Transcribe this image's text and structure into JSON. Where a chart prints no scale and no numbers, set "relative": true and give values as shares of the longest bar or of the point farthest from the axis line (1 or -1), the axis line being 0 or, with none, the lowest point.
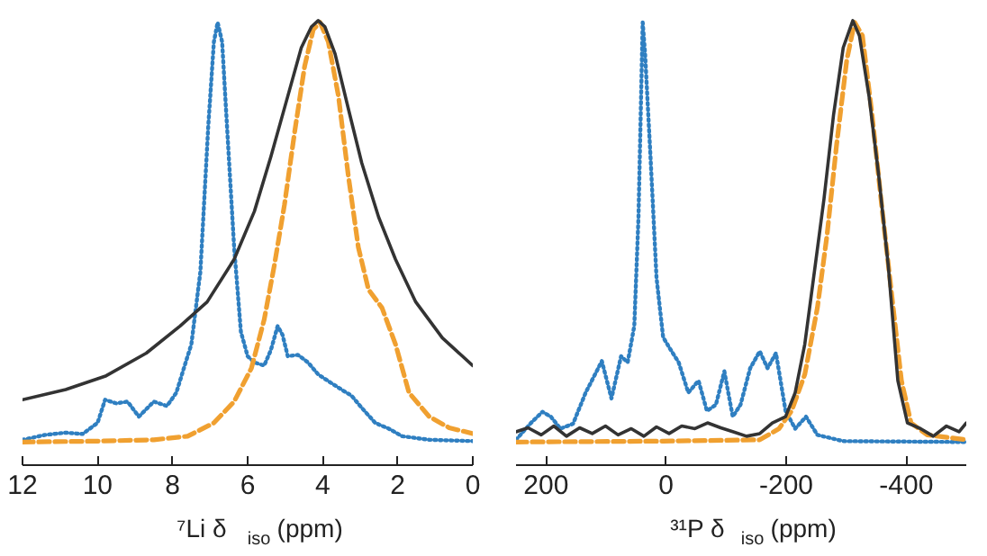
{
  "chart_data": [
    {
      "type": "line",
      "relative": true,
      "xlabel": "⁷Li δ$_{iso}$ (ppm)",
      "xlim": [
        12,
        0
      ],
      "xticks": [
        12,
        10,
        8,
        6,
        4,
        2,
        0
      ],
      "grid": false,
      "series": [
        {
          "color": "#2f7fc1",
          "line_style": "dotted",
          "x": [
            12,
            11.4,
            10.85,
            10.4,
            10.0,
            9.8,
            9.5,
            9.2,
            8.9,
            8.5,
            8.15,
            7.9,
            7.7,
            7.5,
            7.26,
            7.05,
            6.9,
            6.8,
            6.68,
            6.55,
            6.36,
            6.18,
            6.0,
            5.82,
            5.56,
            5.38,
            5.2,
            5.07,
            4.93,
            4.66,
            4.39,
            4.12,
            3.76,
            3.5,
            3.23,
            2.96,
            2.6,
            2.24,
            1.88,
            1.16,
            0
          ],
          "values": [
            0.057,
            0.068,
            0.073,
            0.07,
            0.095,
            0.147,
            0.139,
            0.143,
            0.109,
            0.143,
            0.133,
            0.163,
            0.218,
            0.272,
            0.435,
            0.762,
            0.952,
            0.996,
            0.952,
            0.762,
            0.49,
            0.3,
            0.245,
            0.231,
            0.224,
            0.259,
            0.313,
            0.293,
            0.245,
            0.248,
            0.231,
            0.204,
            0.184,
            0.17,
            0.156,
            0.129,
            0.095,
            0.082,
            0.065,
            0.057,
            0.054
          ]
        },
        {
          "color": "#f0a030",
          "line_style": "dashed",
          "x": [
            12,
            9.95,
            8.5,
            7.6,
            6.9,
            6.36,
            5.9,
            5.56,
            5.29,
            5.02,
            4.75,
            4.48,
            4.25,
            4.07,
            3.85,
            3.58,
            3.32,
            3.05,
            2.78,
            2.42,
            2.06,
            1.7,
            1.16,
            0.63,
            0
          ],
          "values": [
            0.052,
            0.054,
            0.057,
            0.065,
            0.095,
            0.143,
            0.218,
            0.327,
            0.449,
            0.585,
            0.748,
            0.898,
            0.98,
            0.996,
            0.952,
            0.83,
            0.653,
            0.49,
            0.395,
            0.354,
            0.272,
            0.163,
            0.109,
            0.084,
            0.071
          ]
        },
        {
          "color": "#333333",
          "line_style": "solid",
          "x": [
            12,
            10.85,
            9.77,
            8.7,
            7.8,
            7.08,
            6.36,
            5.82,
            5.38,
            4.93,
            4.57,
            4.3,
            4.12,
            3.94,
            3.67,
            3.32,
            2.96,
            2.51,
            2.06,
            1.52,
            0.81,
            0
          ],
          "values": [
            0.147,
            0.17,
            0.201,
            0.252,
            0.313,
            0.367,
            0.463,
            0.571,
            0.694,
            0.83,
            0.939,
            0.986,
            1.0,
            0.986,
            0.925,
            0.803,
            0.68,
            0.558,
            0.463,
            0.367,
            0.286,
            0.224
          ]
        }
      ]
    },
    {
      "type": "line",
      "relative": true,
      "xlabel": "³¹P δ$_{iso}$ (ppm)",
      "xlim": [
        250,
        -500
      ],
      "xticks": [
        200,
        0,
        -200,
        -400
      ],
      "grid": false,
      "series": [
        {
          "color": "#2f7fc1",
          "line_style": "dotted",
          "x": [
            250,
            225,
            206,
            192,
            176,
            155,
            134,
            107,
            91,
            75,
            64,
            53,
            46,
            39,
            35,
            26,
            16,
            5,
            -5,
            -21,
            -37,
            -54,
            -68,
            -83,
            -97,
            -111,
            -124,
            -140,
            -156,
            -169,
            -183,
            -199,
            -215,
            -233,
            -252,
            -295,
            -500
          ],
          "values": [
            0.057,
            0.095,
            0.12,
            0.109,
            0.082,
            0.093,
            0.163,
            0.234,
            0.15,
            0.245,
            0.231,
            0.313,
            0.558,
            0.996,
            0.925,
            0.694,
            0.422,
            0.288,
            0.265,
            0.231,
            0.163,
            0.19,
            0.122,
            0.136,
            0.211,
            0.109,
            0.136,
            0.218,
            0.256,
            0.218,
            0.252,
            0.122,
            0.082,
            0.109,
            0.068,
            0.054,
            0.052
          ]
        },
        {
          "color": "#f0a030",
          "line_style": "dashed",
          "x": [
            250,
            5,
            -156,
            -188,
            -209,
            -231,
            -252,
            -268,
            -284,
            -301,
            -314,
            -327,
            -343,
            -359,
            -376,
            -392,
            -408,
            -435,
            -500
          ],
          "values": [
            0.052,
            0.054,
            0.057,
            0.082,
            0.122,
            0.204,
            0.354,
            0.517,
            0.721,
            0.912,
            0.996,
            0.966,
            0.789,
            0.585,
            0.381,
            0.19,
            0.095,
            0.068,
            0.057
          ]
        },
        {
          "color": "#333333",
          "line_style": "solid",
          "x": [
            250,
            230,
            208,
            187,
            166,
            144,
            123,
            101,
            80,
            58,
            37,
            16,
            -5,
            -26,
            -48,
            -69,
            -91,
            -112,
            -134,
            -156,
            -177,
            -199,
            -215,
            -231,
            -247,
            -263,
            -279,
            -295,
            -311,
            -322,
            -338,
            -354,
            -370,
            -386,
            -402,
            -424,
            -445,
            -467,
            -488,
            -500
          ],
          "values": [
            0.075,
            0.084,
            0.068,
            0.088,
            0.065,
            0.084,
            0.071,
            0.088,
            0.068,
            0.082,
            0.065,
            0.086,
            0.071,
            0.088,
            0.082,
            0.095,
            0.084,
            0.075,
            0.065,
            0.071,
            0.095,
            0.109,
            0.163,
            0.272,
            0.435,
            0.599,
            0.789,
            0.939,
            1.0,
            0.966,
            0.83,
            0.653,
            0.449,
            0.19,
            0.095,
            0.082,
            0.065,
            0.088,
            0.075,
            0.095
          ]
        }
      ]
    }
  ]
}
